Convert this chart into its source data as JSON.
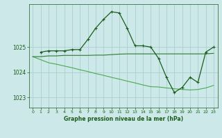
{
  "title": "Graphe pression niveau de la mer (hPa)",
  "bg_color": "#cce8e8",
  "grid_color": "#aad0d0",
  "line_color_dark": "#1a5c1a",
  "line_color_mid": "#2d7a2d",
  "line_color_light": "#4aaa4a",
  "xlim": [
    -0.5,
    23.5
  ],
  "ylim": [
    1022.6,
    1026.7
  ],
  "yticks": [
    1023,
    1024,
    1025
  ],
  "xticks": [
    0,
    1,
    2,
    3,
    4,
    5,
    6,
    7,
    8,
    9,
    10,
    11,
    12,
    13,
    14,
    15,
    16,
    17,
    18,
    19,
    20,
    21,
    22,
    23
  ],
  "series1_x": [
    1,
    2,
    3,
    4,
    5,
    6,
    7,
    8,
    9,
    10,
    11,
    12,
    13,
    14,
    15,
    16,
    17,
    18,
    19,
    20,
    21,
    22,
    23
  ],
  "series1_y": [
    1024.8,
    1024.85,
    1024.85,
    1024.85,
    1024.9,
    1024.9,
    1025.3,
    1025.75,
    1026.1,
    1026.4,
    1026.35,
    1025.75,
    1025.05,
    1025.05,
    1025.0,
    1024.55,
    1023.8,
    1023.2,
    1023.4,
    1023.8,
    1023.6,
    1024.8,
    1025.0
  ],
  "series2_x": [
    0,
    1,
    2,
    3,
    4,
    5,
    6,
    7,
    8,
    9,
    10,
    11,
    12,
    13,
    14,
    15,
    16,
    17,
    18,
    19,
    20,
    21,
    22,
    23
  ],
  "series2_y": [
    1024.62,
    1024.62,
    1024.65,
    1024.65,
    1024.67,
    1024.67,
    1024.67,
    1024.67,
    1024.68,
    1024.68,
    1024.7,
    1024.72,
    1024.73,
    1024.73,
    1024.73,
    1024.73,
    1024.73,
    1024.73,
    1024.73,
    1024.73,
    1024.73,
    1024.73,
    1024.73,
    1024.75
  ],
  "series3_x": [
    0,
    1,
    2,
    3,
    4,
    5,
    6,
    7,
    8,
    9,
    10,
    11,
    12,
    13,
    14,
    15,
    16,
    17,
    18,
    19,
    20,
    21,
    22,
    23
  ],
  "series3_y": [
    1024.62,
    1024.5,
    1024.38,
    1024.32,
    1024.25,
    1024.18,
    1024.1,
    1024.03,
    1023.95,
    1023.88,
    1023.8,
    1023.73,
    1023.65,
    1023.58,
    1023.5,
    1023.43,
    1023.42,
    1023.38,
    1023.35,
    1023.32,
    1023.3,
    1023.32,
    1023.38,
    1023.48
  ]
}
